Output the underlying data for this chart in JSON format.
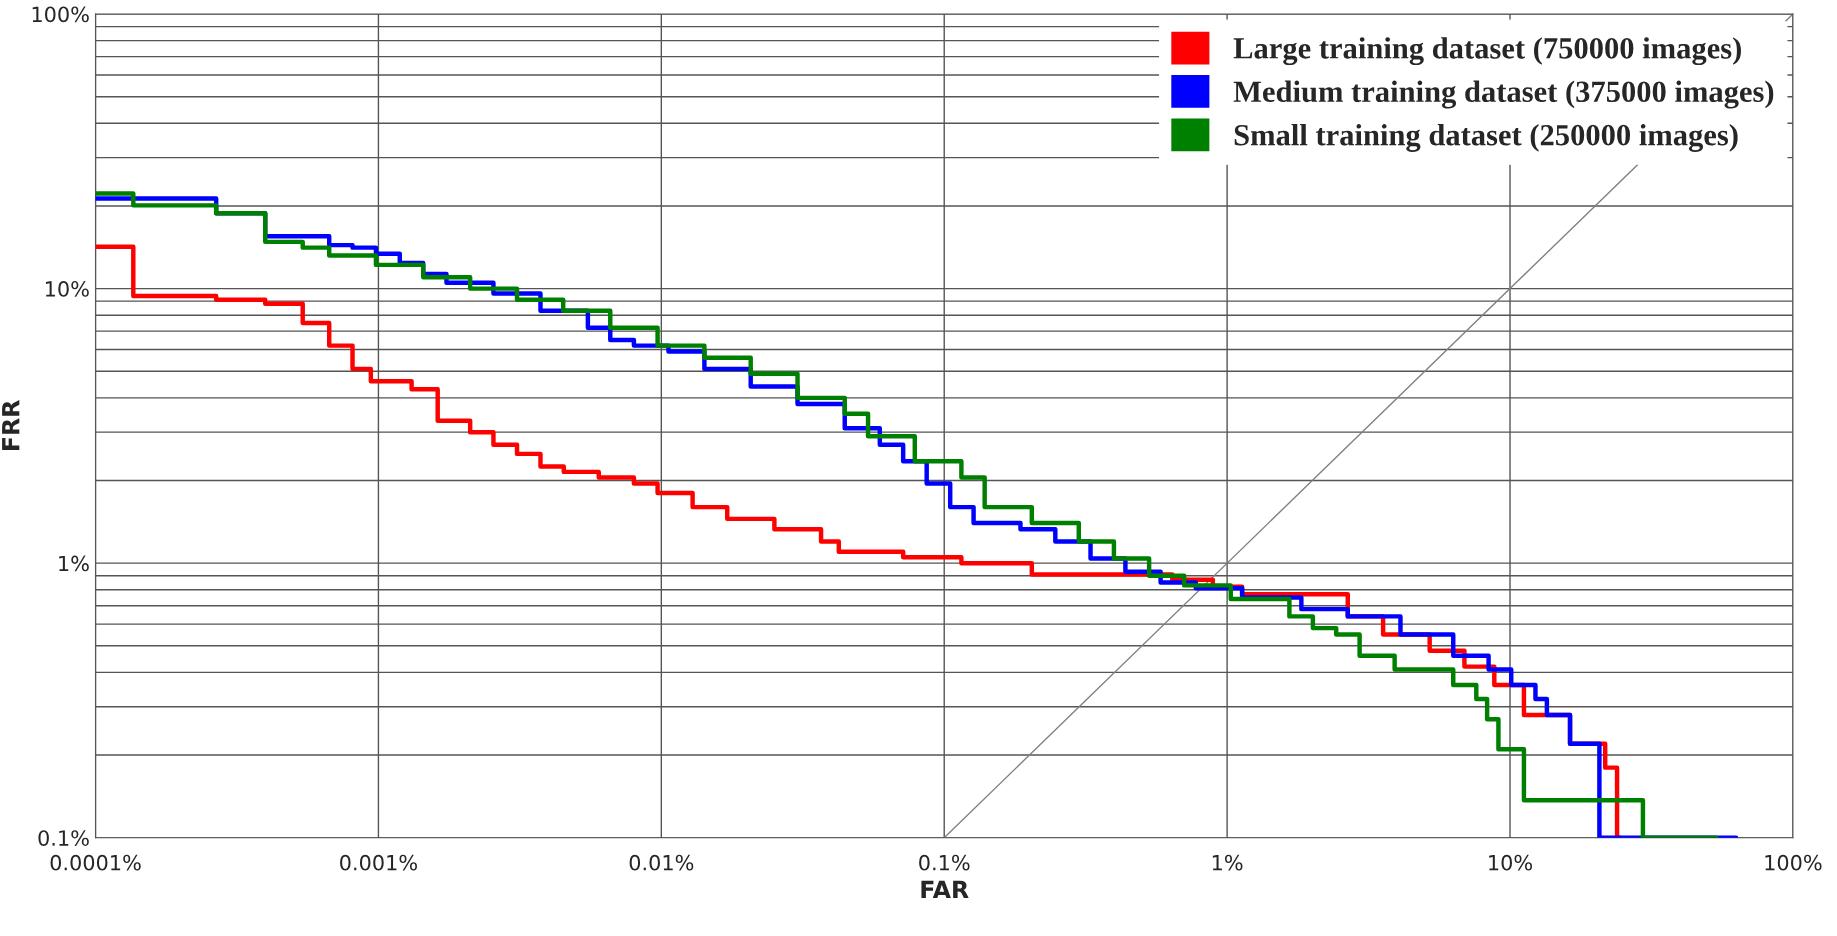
{
  "chart_data": {
    "type": "step",
    "xlabel": "FAR",
    "ylabel": "FRR",
    "log": "xy",
    "grid": true,
    "legend": "top right",
    "xlim": [
      0.0001,
      100
    ],
    "ylim": [
      0.1,
      100
    ],
    "xticks": [
      {
        "value": 0.0001,
        "label": "0.0001%"
      },
      {
        "value": 0.001,
        "label": "0.001%"
      },
      {
        "value": 0.01,
        "label": "0.01%"
      },
      {
        "value": 0.1,
        "label": "0.1%"
      },
      {
        "value": 1,
        "label": "1%"
      },
      {
        "value": 10,
        "label": "10%"
      },
      {
        "value": 100,
        "label": "100%"
      }
    ],
    "yticks": [
      {
        "value": 0.1,
        "label": "0.1%"
      },
      {
        "value": 1,
        "label": "1%"
      },
      {
        "value": 10,
        "label": "10%"
      },
      {
        "value": 100,
        "label": "100%"
      }
    ],
    "series": [
      {
        "name": "Large training dataset (750000 images)",
        "color": "#ff0000",
        "x": [
          0.0001,
          0.000136,
          0.000267,
          0.000398,
          0.00054,
          0.00067,
          0.00081,
          0.00094,
          0.00131,
          0.00162,
          0.00211,
          0.00255,
          0.00309,
          0.00374,
          0.00452,
          0.00601,
          0.008,
          0.0097,
          0.0129,
          0.0171,
          0.0251,
          0.0367,
          0.0424,
          0.0716,
          0.115,
          0.204,
          0.64,
          0.89,
          1.13,
          2.67,
          3.56,
          5.2,
          6.9,
          8.8,
          11.2,
          16.3,
          21.7,
          23.9,
          24.5
        ],
        "values": [
          14.2,
          9.4,
          9.1,
          8.8,
          7.5,
          6.2,
          5.1,
          4.6,
          4.3,
          3.3,
          3.0,
          2.7,
          2.5,
          2.25,
          2.15,
          2.05,
          1.95,
          1.8,
          1.6,
          1.45,
          1.33,
          1.2,
          1.1,
          1.05,
          1.0,
          0.91,
          0.87,
          0.82,
          0.77,
          0.64,
          0.55,
          0.48,
          0.42,
          0.36,
          0.28,
          0.22,
          0.18,
          0.1,
          0.1
        ]
      },
      {
        "name": "Medium training dataset (375000 images)",
        "color": "#0000ff",
        "x": [
          0.0001,
          0.000267,
          0.000398,
          0.00067,
          0.00081,
          0.00098,
          0.00119,
          0.00144,
          0.00174,
          0.00255,
          0.00374,
          0.0055,
          0.0066,
          0.008,
          0.0106,
          0.0142,
          0.0207,
          0.0303,
          0.0445,
          0.0592,
          0.0716,
          0.0867,
          0.105,
          0.127,
          0.186,
          0.247,
          0.329,
          0.437,
          0.582,
          0.775,
          1.13,
          1.83,
          2.67,
          4.1,
          6.3,
          8.4,
          10.1,
          12.3,
          13.5,
          16.3,
          20.7,
          63
        ],
        "values": [
          21.3,
          18.8,
          15.5,
          14.4,
          14.1,
          13.4,
          12.4,
          11.3,
          10.5,
          9.6,
          8.3,
          7.2,
          6.5,
          6.2,
          5.9,
          5.1,
          4.4,
          3.8,
          3.1,
          2.7,
          2.35,
          1.95,
          1.6,
          1.4,
          1.33,
          1.2,
          1.04,
          0.93,
          0.85,
          0.81,
          0.75,
          0.68,
          0.64,
          0.55,
          0.46,
          0.41,
          0.36,
          0.32,
          0.28,
          0.22,
          0.1,
          0.1
        ]
      },
      {
        "name": "Small training dataset (250000 images)",
        "color": "#008000",
        "x": [
          0.0001,
          0.000136,
          0.000267,
          0.000398,
          0.00054,
          0.00067,
          0.00098,
          0.00144,
          0.00211,
          0.00309,
          0.0045,
          0.0066,
          0.0097,
          0.0142,
          0.0207,
          0.0303,
          0.0445,
          0.0538,
          0.0787,
          0.115,
          0.139,
          0.204,
          0.299,
          0.398,
          0.53,
          0.705,
          1.03,
          1.66,
          2.01,
          2.43,
          2.94,
          3.91,
          6.3,
          7.6,
          8.3,
          9.1,
          11.2,
          29.5,
          53.7
        ],
        "values": [
          22.2,
          20.1,
          18.8,
          14.8,
          14.1,
          13.2,
          12.2,
          11.0,
          10.0,
          9.1,
          8.3,
          7.2,
          6.2,
          5.6,
          4.9,
          4.0,
          3.5,
          2.9,
          2.35,
          2.05,
          1.6,
          1.4,
          1.2,
          1.04,
          0.9,
          0.83,
          0.74,
          0.64,
          0.58,
          0.55,
          0.46,
          0.41,
          0.36,
          0.32,
          0.27,
          0.21,
          0.137,
          0.1,
          0.1
        ]
      },
      {
        "type": "line",
        "color": "#808080",
        "x": [
          0.1,
          100
        ],
        "values": [
          0.1,
          100
        ]
      }
    ]
  }
}
